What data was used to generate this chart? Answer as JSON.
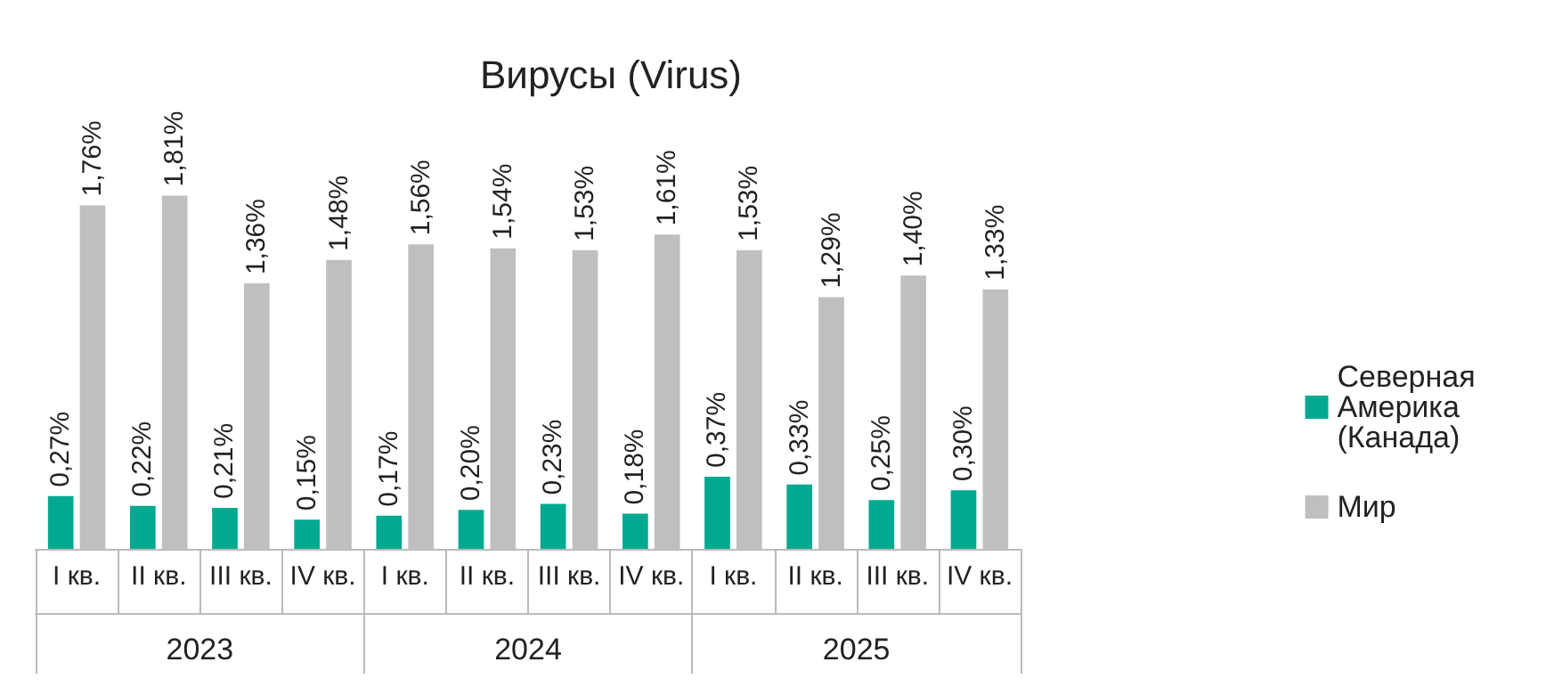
{
  "chart_data": {
    "type": "bar",
    "title": "Вирусы (Virus)",
    "categories": [
      "I кв.",
      "II кв.",
      "III кв.",
      "IV кв.",
      "I кв.",
      "II кв.",
      "III кв.",
      "IV кв.",
      "I кв.",
      "II кв.",
      "III кв.",
      "IV кв."
    ],
    "annotations": [
      "2023",
      "2024",
      "2025"
    ],
    "series": [
      {
        "name": "Северная Америка (Канада)",
        "color": "#00a98f",
        "values": [
          0.27,
          0.22,
          0.21,
          0.15,
          0.17,
          0.2,
          0.23,
          0.18,
          0.37,
          0.33,
          0.25,
          0.3
        ],
        "value_labels": [
          "0,27%",
          "0,22%",
          "0,21%",
          "0,15%",
          "0,17%",
          "0,20%",
          "0,23%",
          "0,18%",
          "0,37%",
          "0,33%",
          "0,25%",
          "0,30%"
        ]
      },
      {
        "name": "Мир",
        "color": "#bfbfbf",
        "values": [
          1.76,
          1.81,
          1.36,
          1.48,
          1.56,
          1.54,
          1.53,
          1.61,
          1.53,
          1.29,
          1.4,
          1.33
        ],
        "value_labels": [
          "1,76%",
          "1,81%",
          "1,36%",
          "1,48%",
          "1,56%",
          "1,54%",
          "1,53%",
          "1,61%",
          "1,53%",
          "1,29%",
          "1,40%",
          "1,33%"
        ]
      }
    ],
    "legend": "right"
  }
}
